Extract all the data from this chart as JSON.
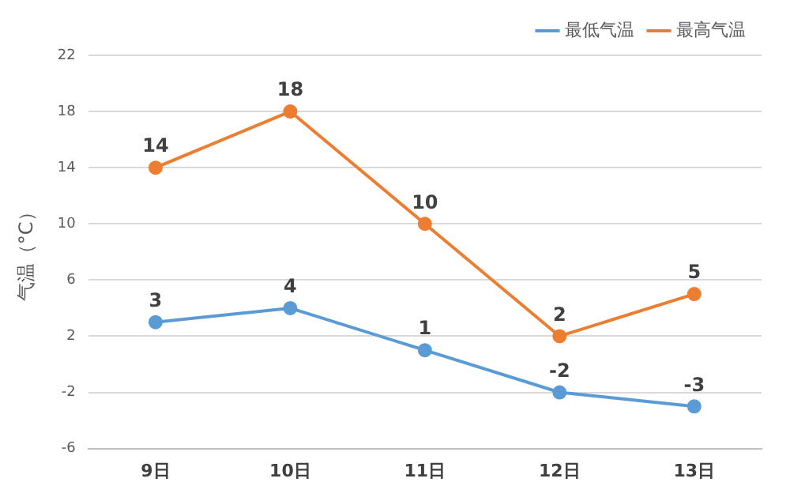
{
  "chart_data": {
    "type": "line",
    "ylabel": "气温（°C）",
    "categories": [
      "9日",
      "10日",
      "11日",
      "12日",
      "13日"
    ],
    "series": [
      {
        "name": "最低气温",
        "color": "#5b9bd5",
        "values": [
          3,
          4,
          1,
          -2,
          -3
        ]
      },
      {
        "name": "最高气温",
        "color": "#ed7d31",
        "values": [
          14,
          18,
          10,
          2,
          5
        ]
      }
    ],
    "ylim": [
      -6,
      22
    ],
    "yticks": [
      -6,
      -2,
      2,
      6,
      10,
      14,
      18,
      22
    ],
    "grid": "y",
    "legend": "top right",
    "marker": "circle",
    "line_style": "solid",
    "data_labels": true
  }
}
